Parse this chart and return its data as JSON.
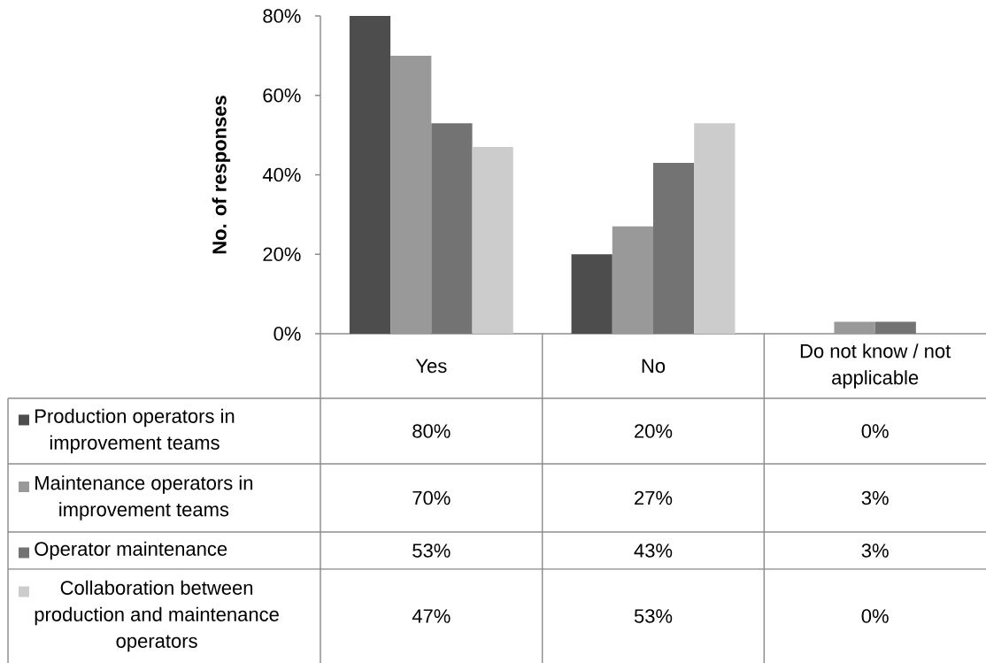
{
  "chart_data": {
    "type": "bar",
    "ylabel": "No. of responses",
    "categories": [
      "Yes",
      "No",
      "Do not know / not applicable"
    ],
    "series": [
      {
        "name": "Production operators in improvement teams",
        "color": "#4d4d4d",
        "values": [
          80,
          20,
          0
        ],
        "value_labels": [
          "80%",
          "20%",
          "0%"
        ]
      },
      {
        "name": "Maintenance operators in improvement teams",
        "color": "#999999",
        "values": [
          70,
          27,
          3
        ],
        "value_labels": [
          "70%",
          "27%",
          "3%"
        ]
      },
      {
        "name": "Operator maintenance",
        "color": "#737373",
        "values": [
          53,
          43,
          3
        ],
        "value_labels": [
          "53%",
          "43%",
          "3%"
        ]
      },
      {
        "name": "Collaboration between production and maintenance operators",
        "color": "#cccccc",
        "values": [
          47,
          53,
          0
        ],
        "value_labels": [
          "47%",
          "53%",
          "0%"
        ]
      }
    ],
    "ylim": [
      0,
      80
    ],
    "yticks": [
      {
        "value": 0,
        "label": "0%"
      },
      {
        "value": 20,
        "label": "20%"
      },
      {
        "value": 40,
        "label": "40%"
      },
      {
        "value": 60,
        "label": "60%"
      },
      {
        "value": 80,
        "label": "80%"
      }
    ],
    "legend": "bottom left"
  }
}
